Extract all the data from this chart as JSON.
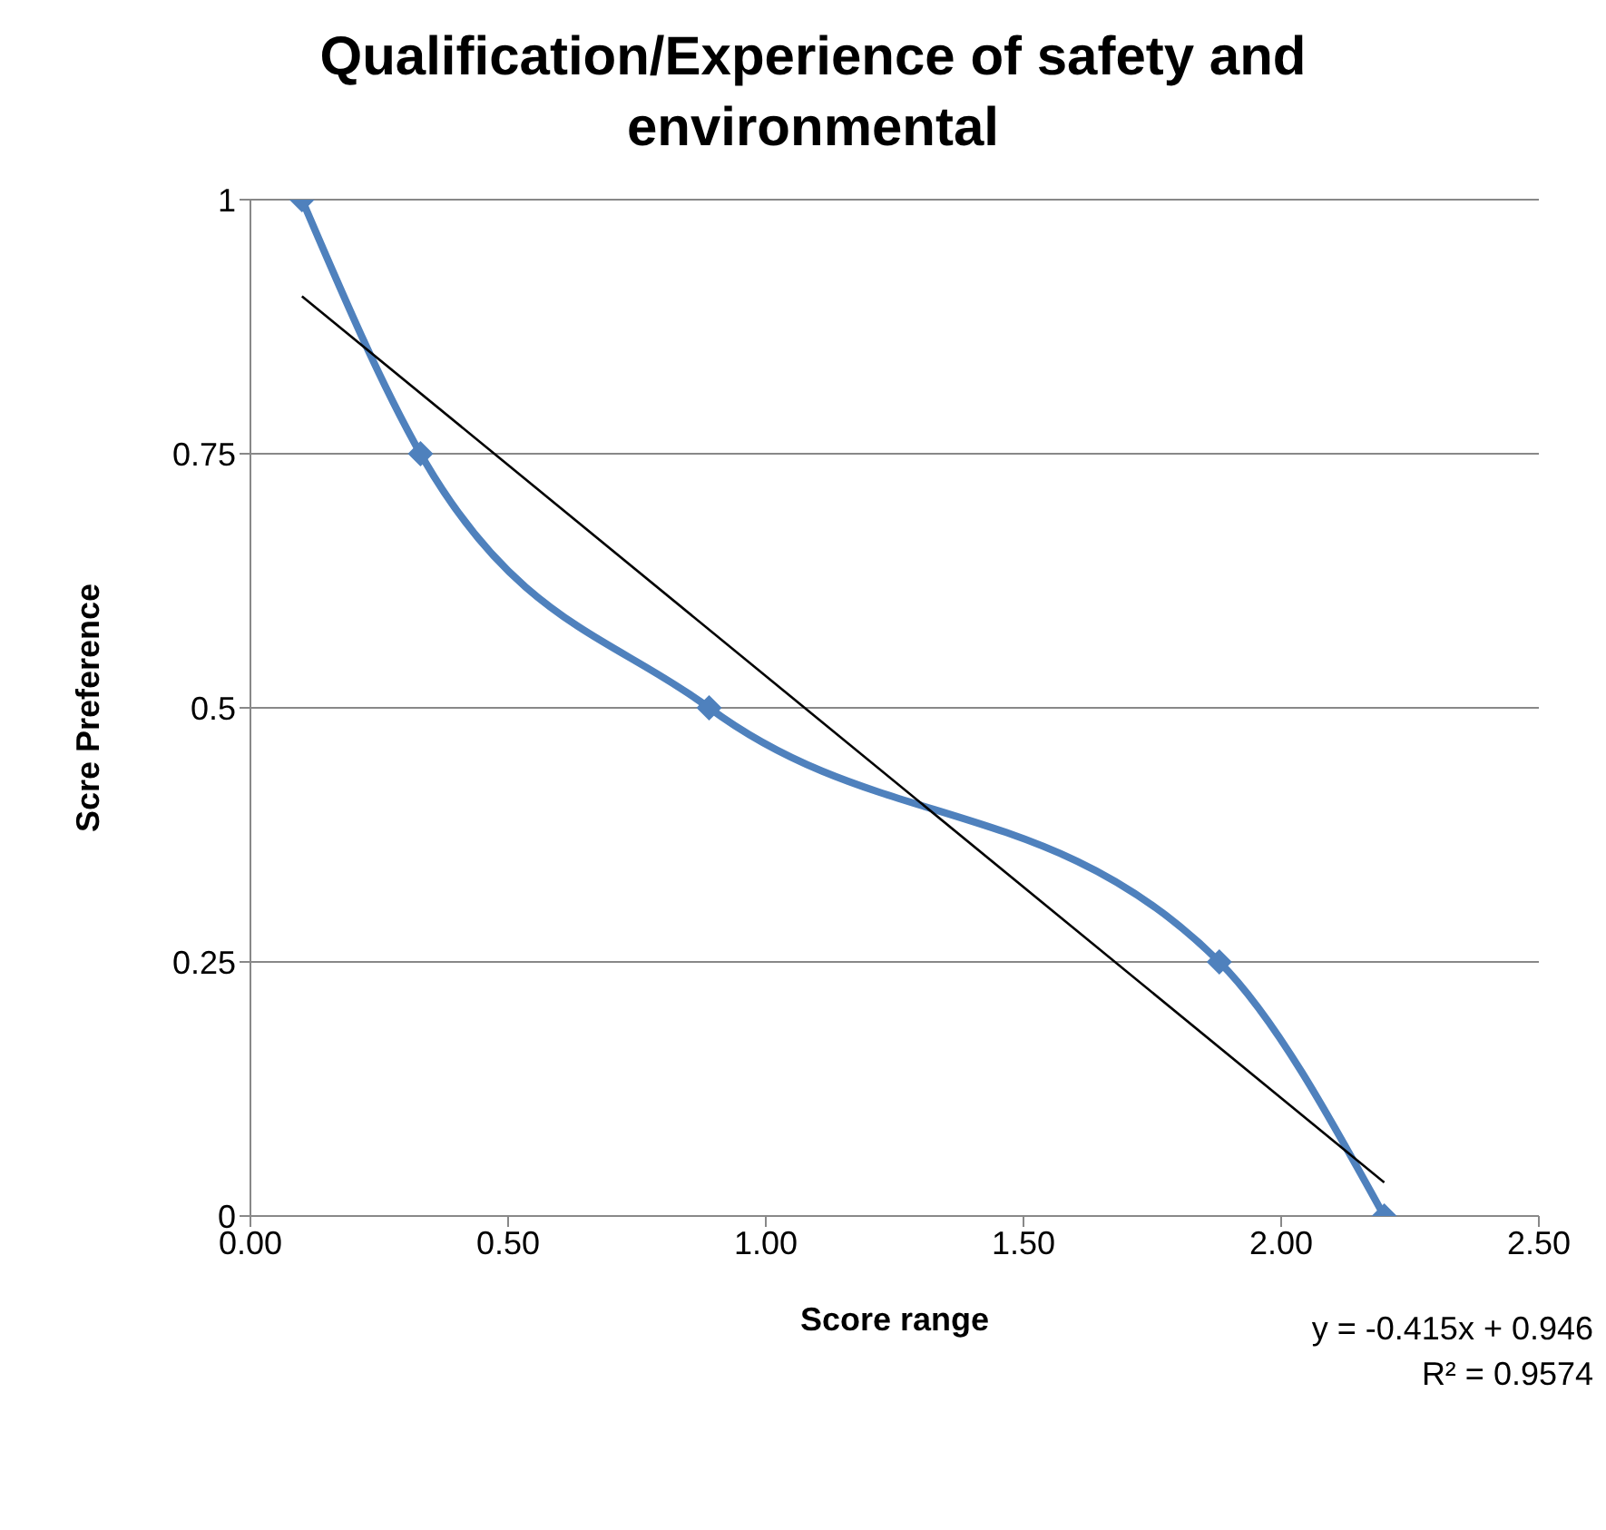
{
  "chart_data": {
    "type": "line",
    "title": "Qualification/Experience of safety and environmental",
    "xlabel": "Score range",
    "ylabel": "Scre Preference",
    "x": [
      0.1,
      0.33,
      0.89,
      1.88,
      2.2
    ],
    "series": [
      {
        "color": "#4f81bd",
        "values": [
          1,
          0.75,
          0.5,
          0.25,
          0
        ],
        "marker": "diamond"
      },
      {
        "type": "line",
        "color": "#000000",
        "x": [
          0.1,
          2.2
        ],
        "values": [
          0.905,
          0.033
        ],
        "marker": "none"
      }
    ],
    "xlim": [
      0,
      2.5
    ],
    "xticks": [
      {
        "value": 0,
        "label": "0.00"
      },
      {
        "value": 0.5,
        "label": "0.50"
      },
      {
        "value": 1,
        "label": "1.00"
      },
      {
        "value": 1.5,
        "label": "1.50"
      },
      {
        "value": 2,
        "label": "2.00"
      },
      {
        "value": 2.5,
        "label": "2.50"
      }
    ],
    "ylim": [
      0,
      1
    ],
    "yticks": [
      0,
      0.25,
      0.5,
      0.75,
      1
    ],
    "grid": "y",
    "annotations": [
      "y = -0.415x + 0.946",
      "R² = 0.9574"
    ]
  }
}
